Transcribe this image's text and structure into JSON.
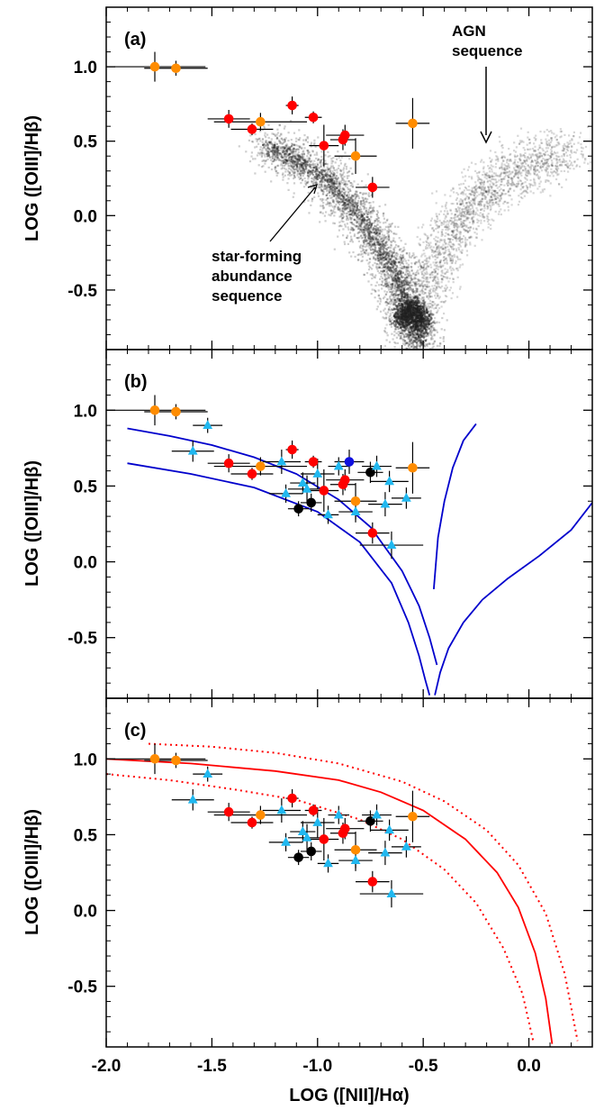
{
  "chart_data": [
    {
      "type": "scatter",
      "panel": "(a)",
      "xlabel": "",
      "ylabel": "LOG ([OIII]/Hβ)",
      "xlim": [
        -2.0,
        0.3
      ],
      "ylim": [
        -0.9,
        1.4
      ],
      "yticks": [
        "1.0",
        "0.5",
        "0.0",
        "-0.5"
      ],
      "annotations": [
        {
          "lines": [
            "AGN",
            "sequence"
          ],
          "points_to": [
            -0.2,
            0.47
          ]
        },
        {
          "lines": [
            "star-forming",
            "abundance",
            "sequence"
          ],
          "points_to": [
            -1.02,
            0.22
          ]
        }
      ],
      "background_density": "SDSS emission-line galaxies (gray density)",
      "series": [
        {
          "color": "#ff8c00",
          "marker": "circle",
          "points": [
            {
              "x": -1.77,
              "y": 1.0,
              "xerr": 0.24,
              "yerr": 0.1
            },
            {
              "x": -1.67,
              "y": 0.99,
              "xerr": 0.15,
              "yerr": 0.05
            },
            {
              "x": -1.27,
              "y": 0.63,
              "xerr": 0.22,
              "yerr": 0.06
            },
            {
              "x": -0.82,
              "y": 0.4,
              "xerr": 0.1,
              "yerr": 0.12
            },
            {
              "x": -0.55,
              "y": 0.62,
              "xerr": 0.08,
              "yerr": 0.17
            }
          ]
        },
        {
          "color": "#ff0000",
          "marker": "circle",
          "points": [
            {
              "x": -1.42,
              "y": 0.65,
              "xerr": 0.1,
              "yerr": 0.06
            },
            {
              "x": -1.12,
              "y": 0.74,
              "xerr": 0.03,
              "yerr": 0.06
            },
            {
              "x": -1.31,
              "y": 0.58,
              "xerr": 0.1,
              "yerr": 0.04
            },
            {
              "x": -1.02,
              "y": 0.66,
              "xerr": 0.04,
              "yerr": 0.04
            },
            {
              "x": -0.97,
              "y": 0.47,
              "xerr": 0.07,
              "yerr": 0.14
            },
            {
              "x": -0.88,
              "y": 0.51,
              "xerr": 0.06,
              "yerr": 0.07
            },
            {
              "x": -0.87,
              "y": 0.54,
              "xerr": 0.09,
              "yerr": 0.07
            },
            {
              "x": -0.74,
              "y": 0.19,
              "xerr": 0.08,
              "yerr": 0.07
            }
          ]
        }
      ]
    },
    {
      "type": "scatter",
      "panel": "(b)",
      "xlabel": "",
      "ylabel": "LOG ([OIII]/Hβ)",
      "xlim": [
        -2.0,
        0.3
      ],
      "ylim": [
        -0.9,
        1.4
      ],
      "yticks": [
        "1.0",
        "0.5",
        "0.0",
        "-0.5"
      ],
      "curves": [
        {
          "color": "#0000cc",
          "x": [
            -1.9,
            -1.7,
            -1.5,
            -1.3,
            -1.1,
            -0.9,
            -0.75,
            -0.6,
            -0.52,
            -0.47,
            -0.435
          ],
          "y": [
            0.88,
            0.83,
            0.77,
            0.69,
            0.58,
            0.41,
            0.23,
            -0.06,
            -0.29,
            -0.5,
            -0.68
          ]
        },
        {
          "color": "#0000cc",
          "x": [
            -0.45,
            -0.43,
            -0.4,
            -0.36,
            -0.31,
            -0.25
          ],
          "y": [
            -0.18,
            0.16,
            0.4,
            0.62,
            0.8,
            0.91
          ]
        },
        {
          "color": "#0000cc",
          "x": [
            -1.9,
            -1.6,
            -1.3,
            -1.0,
            -0.8,
            -0.65,
            -0.57,
            -0.52,
            -0.49,
            -0.47
          ],
          "y": [
            0.65,
            0.58,
            0.49,
            0.33,
            0.13,
            -0.14,
            -0.4,
            -0.62,
            -0.78,
            -0.88
          ]
        },
        {
          "color": "#0000cc",
          "x": [
            -0.445,
            -0.42,
            -0.38,
            -0.31,
            -0.22,
            -0.1,
            0.05,
            0.2,
            0.3
          ],
          "y": [
            -0.88,
            -0.73,
            -0.57,
            -0.4,
            -0.25,
            -0.11,
            0.04,
            0.21,
            0.39
          ]
        }
      ],
      "series": [
        {
          "color": "#ff8c00",
          "marker": "circle",
          "points": [
            {
              "x": -1.77,
              "y": 1.0,
              "xerr": 0.24,
              "yerr": 0.1
            },
            {
              "x": -1.67,
              "y": 0.99,
              "xerr": 0.15,
              "yerr": 0.05
            },
            {
              "x": -1.27,
              "y": 0.63,
              "xerr": 0.22,
              "yerr": 0.06
            },
            {
              "x": -0.82,
              "y": 0.4,
              "xerr": 0.1,
              "yerr": 0.12
            },
            {
              "x": -0.55,
              "y": 0.62,
              "xerr": 0.08,
              "yerr": 0.17
            }
          ]
        },
        {
          "color": "#ff0000",
          "marker": "circle",
          "points": [
            {
              "x": -1.42,
              "y": 0.65,
              "xerr": 0.1,
              "yerr": 0.06
            },
            {
              "x": -1.12,
              "y": 0.74,
              "xerr": 0.03,
              "yerr": 0.06
            },
            {
              "x": -1.31,
              "y": 0.58,
              "xerr": 0.1,
              "yerr": 0.04
            },
            {
              "x": -1.02,
              "y": 0.66,
              "xerr": 0.04,
              "yerr": 0.04
            },
            {
              "x": -0.97,
              "y": 0.47,
              "xerr": 0.07,
              "yerr": 0.14
            },
            {
              "x": -0.88,
              "y": 0.51,
              "xerr": 0.06,
              "yerr": 0.07
            },
            {
              "x": -0.87,
              "y": 0.54,
              "xerr": 0.09,
              "yerr": 0.07
            },
            {
              "x": -0.74,
              "y": 0.19,
              "xerr": 0.08,
              "yerr": 0.07
            }
          ]
        },
        {
          "color": "#000000",
          "marker": "circle",
          "points": [
            {
              "x": -1.09,
              "y": 0.35,
              "xerr": 0.05,
              "yerr": 0.05
            },
            {
              "x": -1.03,
              "y": 0.39,
              "xerr": 0.05,
              "yerr": 0.06
            },
            {
              "x": -0.75,
              "y": 0.59,
              "xerr": 0.06,
              "yerr": 0.07
            }
          ]
        },
        {
          "color": "#1010e0",
          "marker": "circle",
          "points": [
            {
              "x": -0.85,
              "y": 0.66,
              "xerr": 0.07,
              "yerr": 0.08
            }
          ]
        },
        {
          "color": "#20b8f0",
          "marker": "triangle",
          "points": [
            {
              "x": -1.52,
              "y": 0.9,
              "xerr": 0.07,
              "yerr": 0.05
            },
            {
              "x": -1.59,
              "y": 0.73,
              "xerr": 0.1,
              "yerr": 0.07
            },
            {
              "x": -1.17,
              "y": 0.66,
              "xerr": 0.09,
              "yerr": 0.08
            },
            {
              "x": -1.15,
              "y": 0.45,
              "xerr": 0.08,
              "yerr": 0.06
            },
            {
              "x": -1.07,
              "y": 0.52,
              "xerr": 0.06,
              "yerr": 0.07
            },
            {
              "x": -1.05,
              "y": 0.48,
              "xerr": 0.09,
              "yerr": 0.09
            },
            {
              "x": -1.0,
              "y": 0.58,
              "xerr": 0.08,
              "yerr": 0.1
            },
            {
              "x": -0.95,
              "y": 0.31,
              "xerr": 0.05,
              "yerr": 0.06
            },
            {
              "x": -0.9,
              "y": 0.63,
              "xerr": 0.05,
              "yerr": 0.06
            },
            {
              "x": -0.82,
              "y": 0.33,
              "xerr": 0.08,
              "yerr": 0.07
            },
            {
              "x": -0.72,
              "y": 0.63,
              "xerr": 0.07,
              "yerr": 0.07
            },
            {
              "x": -0.68,
              "y": 0.38,
              "xerr": 0.08,
              "yerr": 0.08
            },
            {
              "x": -0.66,
              "y": 0.53,
              "xerr": 0.09,
              "yerr": 0.07
            },
            {
              "x": -0.65,
              "y": 0.11,
              "xerr": 0.15,
              "yerr": 0.09
            },
            {
              "x": -0.58,
              "y": 0.42,
              "xerr": 0.07,
              "yerr": 0.07
            }
          ]
        }
      ]
    },
    {
      "type": "scatter",
      "panel": "(c)",
      "xlabel": "LOG ([NII]/Hα)",
      "ylabel": "LOG ([OIII]/Hβ)",
      "xlim": [
        -2.0,
        0.3
      ],
      "ylim": [
        -0.9,
        1.4
      ],
      "xticks": [
        "-2.0",
        "-1.5",
        "-1.0",
        "-0.5",
        "0.0"
      ],
      "yticks": [
        "1.0",
        "0.5",
        "0.0",
        "-0.5"
      ],
      "curves": [
        {
          "color": "#ff0000",
          "style": "solid",
          "x": [
            -2.0,
            -1.6,
            -1.2,
            -0.9,
            -0.7,
            -0.5,
            -0.3,
            -0.15,
            -0.05,
            0.03,
            0.08,
            0.11
          ],
          "y": [
            1.0,
            0.97,
            0.92,
            0.86,
            0.78,
            0.66,
            0.47,
            0.25,
            0.02,
            -0.28,
            -0.58,
            -0.88
          ]
        },
        {
          "color": "#ff0000",
          "style": "dotted",
          "x": [
            -1.8,
            -1.5,
            -1.2,
            -0.9,
            -0.6,
            -0.4,
            -0.2,
            -0.05,
            0.08,
            0.17,
            0.23
          ],
          "y": [
            1.1,
            1.08,
            1.04,
            0.97,
            0.85,
            0.72,
            0.53,
            0.3,
            -0.02,
            -0.42,
            -0.86
          ]
        },
        {
          "color": "#ff0000",
          "style": "dotted",
          "x": [
            -2.0,
            -1.7,
            -1.4,
            -1.1,
            -0.8,
            -0.6,
            -0.4,
            -0.25,
            -0.12,
            -0.03,
            0.02
          ],
          "y": [
            0.9,
            0.86,
            0.8,
            0.73,
            0.6,
            0.47,
            0.27,
            0.05,
            -0.25,
            -0.55,
            -0.86
          ]
        }
      ],
      "series": [
        {
          "color": "#ff8c00",
          "marker": "circle",
          "points": [
            {
              "x": -1.77,
              "y": 1.0,
              "xerr": 0.24,
              "yerr": 0.1
            },
            {
              "x": -1.67,
              "y": 0.99,
              "xerr": 0.15,
              "yerr": 0.05
            },
            {
              "x": -1.27,
              "y": 0.63,
              "xerr": 0.22,
              "yerr": 0.06
            },
            {
              "x": -0.82,
              "y": 0.4,
              "xerr": 0.1,
              "yerr": 0.12
            },
            {
              "x": -0.55,
              "y": 0.62,
              "xerr": 0.08,
              "yerr": 0.17
            }
          ]
        },
        {
          "color": "#ff0000",
          "marker": "circle",
          "points": [
            {
              "x": -1.42,
              "y": 0.65,
              "xerr": 0.1,
              "yerr": 0.06
            },
            {
              "x": -1.12,
              "y": 0.74,
              "xerr": 0.03,
              "yerr": 0.06
            },
            {
              "x": -1.31,
              "y": 0.58,
              "xerr": 0.1,
              "yerr": 0.04
            },
            {
              "x": -1.02,
              "y": 0.66,
              "xerr": 0.04,
              "yerr": 0.04
            },
            {
              "x": -0.97,
              "y": 0.47,
              "xerr": 0.07,
              "yerr": 0.14
            },
            {
              "x": -0.88,
              "y": 0.51,
              "xerr": 0.06,
              "yerr": 0.07
            },
            {
              "x": -0.87,
              "y": 0.54,
              "xerr": 0.09,
              "yerr": 0.07
            },
            {
              "x": -0.74,
              "y": 0.19,
              "xerr": 0.08,
              "yerr": 0.07
            }
          ]
        },
        {
          "color": "#000000",
          "marker": "circle",
          "points": [
            {
              "x": -1.09,
              "y": 0.35,
              "xerr": 0.05,
              "yerr": 0.05
            },
            {
              "x": -1.03,
              "y": 0.39,
              "xerr": 0.05,
              "yerr": 0.06
            },
            {
              "x": -0.75,
              "y": 0.59,
              "xerr": 0.06,
              "yerr": 0.07
            }
          ]
        },
        {
          "color": "#20b8f0",
          "marker": "triangle",
          "points": [
            {
              "x": -1.52,
              "y": 0.9,
              "xerr": 0.07,
              "yerr": 0.05
            },
            {
              "x": -1.59,
              "y": 0.73,
              "xerr": 0.1,
              "yerr": 0.07
            },
            {
              "x": -1.17,
              "y": 0.66,
              "xerr": 0.09,
              "yerr": 0.08
            },
            {
              "x": -1.15,
              "y": 0.45,
              "xerr": 0.08,
              "yerr": 0.06
            },
            {
              "x": -1.07,
              "y": 0.52,
              "xerr": 0.06,
              "yerr": 0.07
            },
            {
              "x": -1.05,
              "y": 0.48,
              "xerr": 0.09,
              "yerr": 0.09
            },
            {
              "x": -1.0,
              "y": 0.58,
              "xerr": 0.08,
              "yerr": 0.1
            },
            {
              "x": -0.95,
              "y": 0.31,
              "xerr": 0.05,
              "yerr": 0.06
            },
            {
              "x": -0.9,
              "y": 0.63,
              "xerr": 0.05,
              "yerr": 0.06
            },
            {
              "x": -0.82,
              "y": 0.33,
              "xerr": 0.08,
              "yerr": 0.07
            },
            {
              "x": -0.72,
              "y": 0.63,
              "xerr": 0.07,
              "yerr": 0.07
            },
            {
              "x": -0.68,
              "y": 0.38,
              "xerr": 0.08,
              "yerr": 0.08
            },
            {
              "x": -0.66,
              "y": 0.53,
              "xerr": 0.09,
              "yerr": 0.07
            },
            {
              "x": -0.65,
              "y": 0.11,
              "xerr": 0.15,
              "yerr": 0.09
            },
            {
              "x": -0.58,
              "y": 0.42,
              "xerr": 0.07,
              "yerr": 0.07
            }
          ]
        }
      ]
    }
  ]
}
